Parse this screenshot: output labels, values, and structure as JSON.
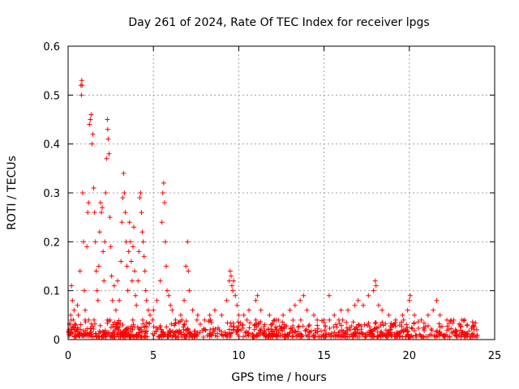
{
  "chart_data": {
    "type": "scatter",
    "title": "Day 261 of 2024, Rate Of TEC Index for receiver lpgs",
    "xlabel": "GPS time / hours",
    "ylabel": "ROTI / TECUs",
    "xlim": [
      0,
      25
    ],
    "ylim": [
      0,
      0.6
    ],
    "x_ticks": [
      0,
      5,
      10,
      15,
      20,
      25
    ],
    "x_tick_labels": [
      "0",
      "5",
      "10",
      "15",
      "20",
      "25"
    ],
    "y_ticks": [
      0,
      0.1,
      0.2,
      0.3,
      0.4,
      0.5,
      0.6
    ],
    "y_tick_labels": [
      "0",
      "0.1",
      "0.2",
      "0.3",
      "0.4",
      "0.5",
      "0.6"
    ],
    "grid": true,
    "marker": "+",
    "color": "#ff0000",
    "series": [
      {
        "name": "ROTI",
        "points": [
          [
            0.05,
            0.02
          ],
          [
            0.1,
            0.03
          ],
          [
            0.15,
            0.05
          ],
          [
            0.2,
            0.11
          ],
          [
            0.25,
            0.08
          ],
          [
            0.3,
            0.04
          ],
          [
            0.35,
            0.06
          ],
          [
            0.45,
            0.03
          ],
          [
            0.55,
            0.07
          ],
          [
            0.6,
            0.05
          ],
          [
            0.7,
            0.14
          ],
          [
            0.75,
            0.52
          ],
          [
            0.78,
            0.5
          ],
          [
            0.8,
            0.53
          ],
          [
            0.82,
            0.52
          ],
          [
            0.85,
            0.3
          ],
          [
            0.9,
            0.2
          ],
          [
            0.95,
            0.1
          ],
          [
            1.0,
            0.06
          ],
          [
            1.1,
            0.19
          ],
          [
            1.15,
            0.26
          ],
          [
            1.2,
            0.28
          ],
          [
            1.25,
            0.44
          ],
          [
            1.3,
            0.45
          ],
          [
            1.35,
            0.46
          ],
          [
            1.4,
            0.4
          ],
          [
            1.45,
            0.42
          ],
          [
            1.5,
            0.31
          ],
          [
            1.55,
            0.26
          ],
          [
            1.6,
            0.2
          ],
          [
            1.65,
            0.14
          ],
          [
            1.7,
            0.1
          ],
          [
            1.75,
            0.08
          ],
          [
            1.8,
            0.15
          ],
          [
            1.85,
            0.22
          ],
          [
            1.9,
            0.28
          ],
          [
            1.95,
            0.26
          ],
          [
            2.0,
            0.27
          ],
          [
            2.05,
            0.18
          ],
          [
            2.1,
            0.12
          ],
          [
            2.15,
            0.2
          ],
          [
            2.2,
            0.3
          ],
          [
            2.25,
            0.37
          ],
          [
            2.3,
            0.45
          ],
          [
            2.32,
            0.43
          ],
          [
            2.35,
            0.41
          ],
          [
            2.4,
            0.38
          ],
          [
            2.45,
            0.25
          ],
          [
            2.5,
            0.19
          ],
          [
            2.55,
            0.13
          ],
          [
            2.6,
            0.08
          ],
          [
            2.7,
            0.11
          ],
          [
            2.8,
            0.06
          ],
          [
            2.9,
            0.12
          ],
          [
            3.0,
            0.08
          ],
          [
            3.1,
            0.16
          ],
          [
            3.15,
            0.24
          ],
          [
            3.2,
            0.29
          ],
          [
            3.25,
            0.34
          ],
          [
            3.3,
            0.3
          ],
          [
            3.35,
            0.26
          ],
          [
            3.4,
            0.2
          ],
          [
            3.45,
            0.15
          ],
          [
            3.5,
            0.1
          ],
          [
            3.55,
            0.18
          ],
          [
            3.6,
            0.24
          ],
          [
            3.65,
            0.2
          ],
          [
            3.7,
            0.16
          ],
          [
            3.75,
            0.12
          ],
          [
            3.8,
            0.19
          ],
          [
            3.85,
            0.23
          ],
          [
            3.9,
            0.14
          ],
          [
            3.95,
            0.09
          ],
          [
            4.0,
            0.07
          ],
          [
            4.1,
            0.12
          ],
          [
            4.15,
            0.18
          ],
          [
            4.2,
            0.29
          ],
          [
            4.25,
            0.3
          ],
          [
            4.3,
            0.26
          ],
          [
            4.35,
            0.22
          ],
          [
            4.4,
            0.2
          ],
          [
            4.45,
            0.17
          ],
          [
            4.5,
            0.14
          ],
          [
            4.55,
            0.1
          ],
          [
            4.6,
            0.08
          ],
          [
            4.7,
            0.06
          ],
          [
            4.8,
            0.05
          ],
          [
            5.0,
            0.06
          ],
          [
            5.2,
            0.08
          ],
          [
            5.4,
            0.12
          ],
          [
            5.5,
            0.24
          ],
          [
            5.55,
            0.3
          ],
          [
            5.6,
            0.32
          ],
          [
            5.65,
            0.28
          ],
          [
            5.7,
            0.2
          ],
          [
            5.75,
            0.15
          ],
          [
            5.8,
            0.1
          ],
          [
            5.9,
            0.09
          ],
          [
            6.0,
            0.07
          ],
          [
            6.1,
            0.06
          ],
          [
            6.3,
            0.04
          ],
          [
            6.6,
            0.05
          ],
          [
            6.8,
            0.08
          ],
          [
            6.9,
            0.15
          ],
          [
            7.0,
            0.2
          ],
          [
            7.05,
            0.14
          ],
          [
            7.1,
            0.1
          ],
          [
            7.3,
            0.06
          ],
          [
            7.6,
            0.05
          ],
          [
            8.0,
            0.04
          ],
          [
            8.3,
            0.05
          ],
          [
            8.6,
            0.06
          ],
          [
            9.0,
            0.05
          ],
          [
            9.3,
            0.08
          ],
          [
            9.45,
            0.12
          ],
          [
            9.5,
            0.14
          ],
          [
            9.55,
            0.13
          ],
          [
            9.6,
            0.11
          ],
          [
            9.65,
            0.1
          ],
          [
            9.7,
            0.12
          ],
          [
            9.8,
            0.09
          ],
          [
            9.9,
            0.07
          ],
          [
            10.0,
            0.05
          ],
          [
            10.3,
            0.05
          ],
          [
            10.6,
            0.06
          ],
          [
            11.0,
            0.08
          ],
          [
            11.1,
            0.09
          ],
          [
            11.3,
            0.06
          ],
          [
            11.8,
            0.05
          ],
          [
            12.2,
            0.04
          ],
          [
            12.6,
            0.05
          ],
          [
            13.0,
            0.06
          ],
          [
            13.3,
            0.07
          ],
          [
            13.6,
            0.08
          ],
          [
            13.8,
            0.09
          ],
          [
            14.0,
            0.06
          ],
          [
            14.4,
            0.05
          ],
          [
            15.0,
            0.04
          ],
          [
            15.3,
            0.09
          ],
          [
            15.6,
            0.05
          ],
          [
            16.0,
            0.06
          ],
          [
            16.4,
            0.06
          ],
          [
            16.8,
            0.07
          ],
          [
            17.0,
            0.08
          ],
          [
            17.3,
            0.07
          ],
          [
            17.6,
            0.09
          ],
          [
            17.9,
            0.1
          ],
          [
            18.0,
            0.12
          ],
          [
            18.05,
            0.11
          ],
          [
            18.2,
            0.07
          ],
          [
            18.4,
            0.06
          ],
          [
            18.8,
            0.05
          ],
          [
            19.2,
            0.04
          ],
          [
            19.6,
            0.05
          ],
          [
            19.9,
            0.06
          ],
          [
            20.0,
            0.08
          ],
          [
            20.05,
            0.09
          ],
          [
            20.3,
            0.05
          ],
          [
            20.7,
            0.04
          ],
          [
            21.1,
            0.05
          ],
          [
            21.4,
            0.06
          ],
          [
            21.6,
            0.08
          ],
          [
            21.8,
            0.05
          ],
          [
            22.2,
            0.04
          ],
          [
            22.6,
            0.04
          ],
          [
            23.0,
            0.03
          ],
          [
            23.4,
            0.03
          ],
          [
            23.8,
            0.02
          ],
          [
            23.95,
            0.02
          ]
        ],
        "baseline_band": [
          0.005,
          0.04
        ],
        "baseline_x_range": [
          0.0,
          24.0
        ]
      }
    ]
  }
}
